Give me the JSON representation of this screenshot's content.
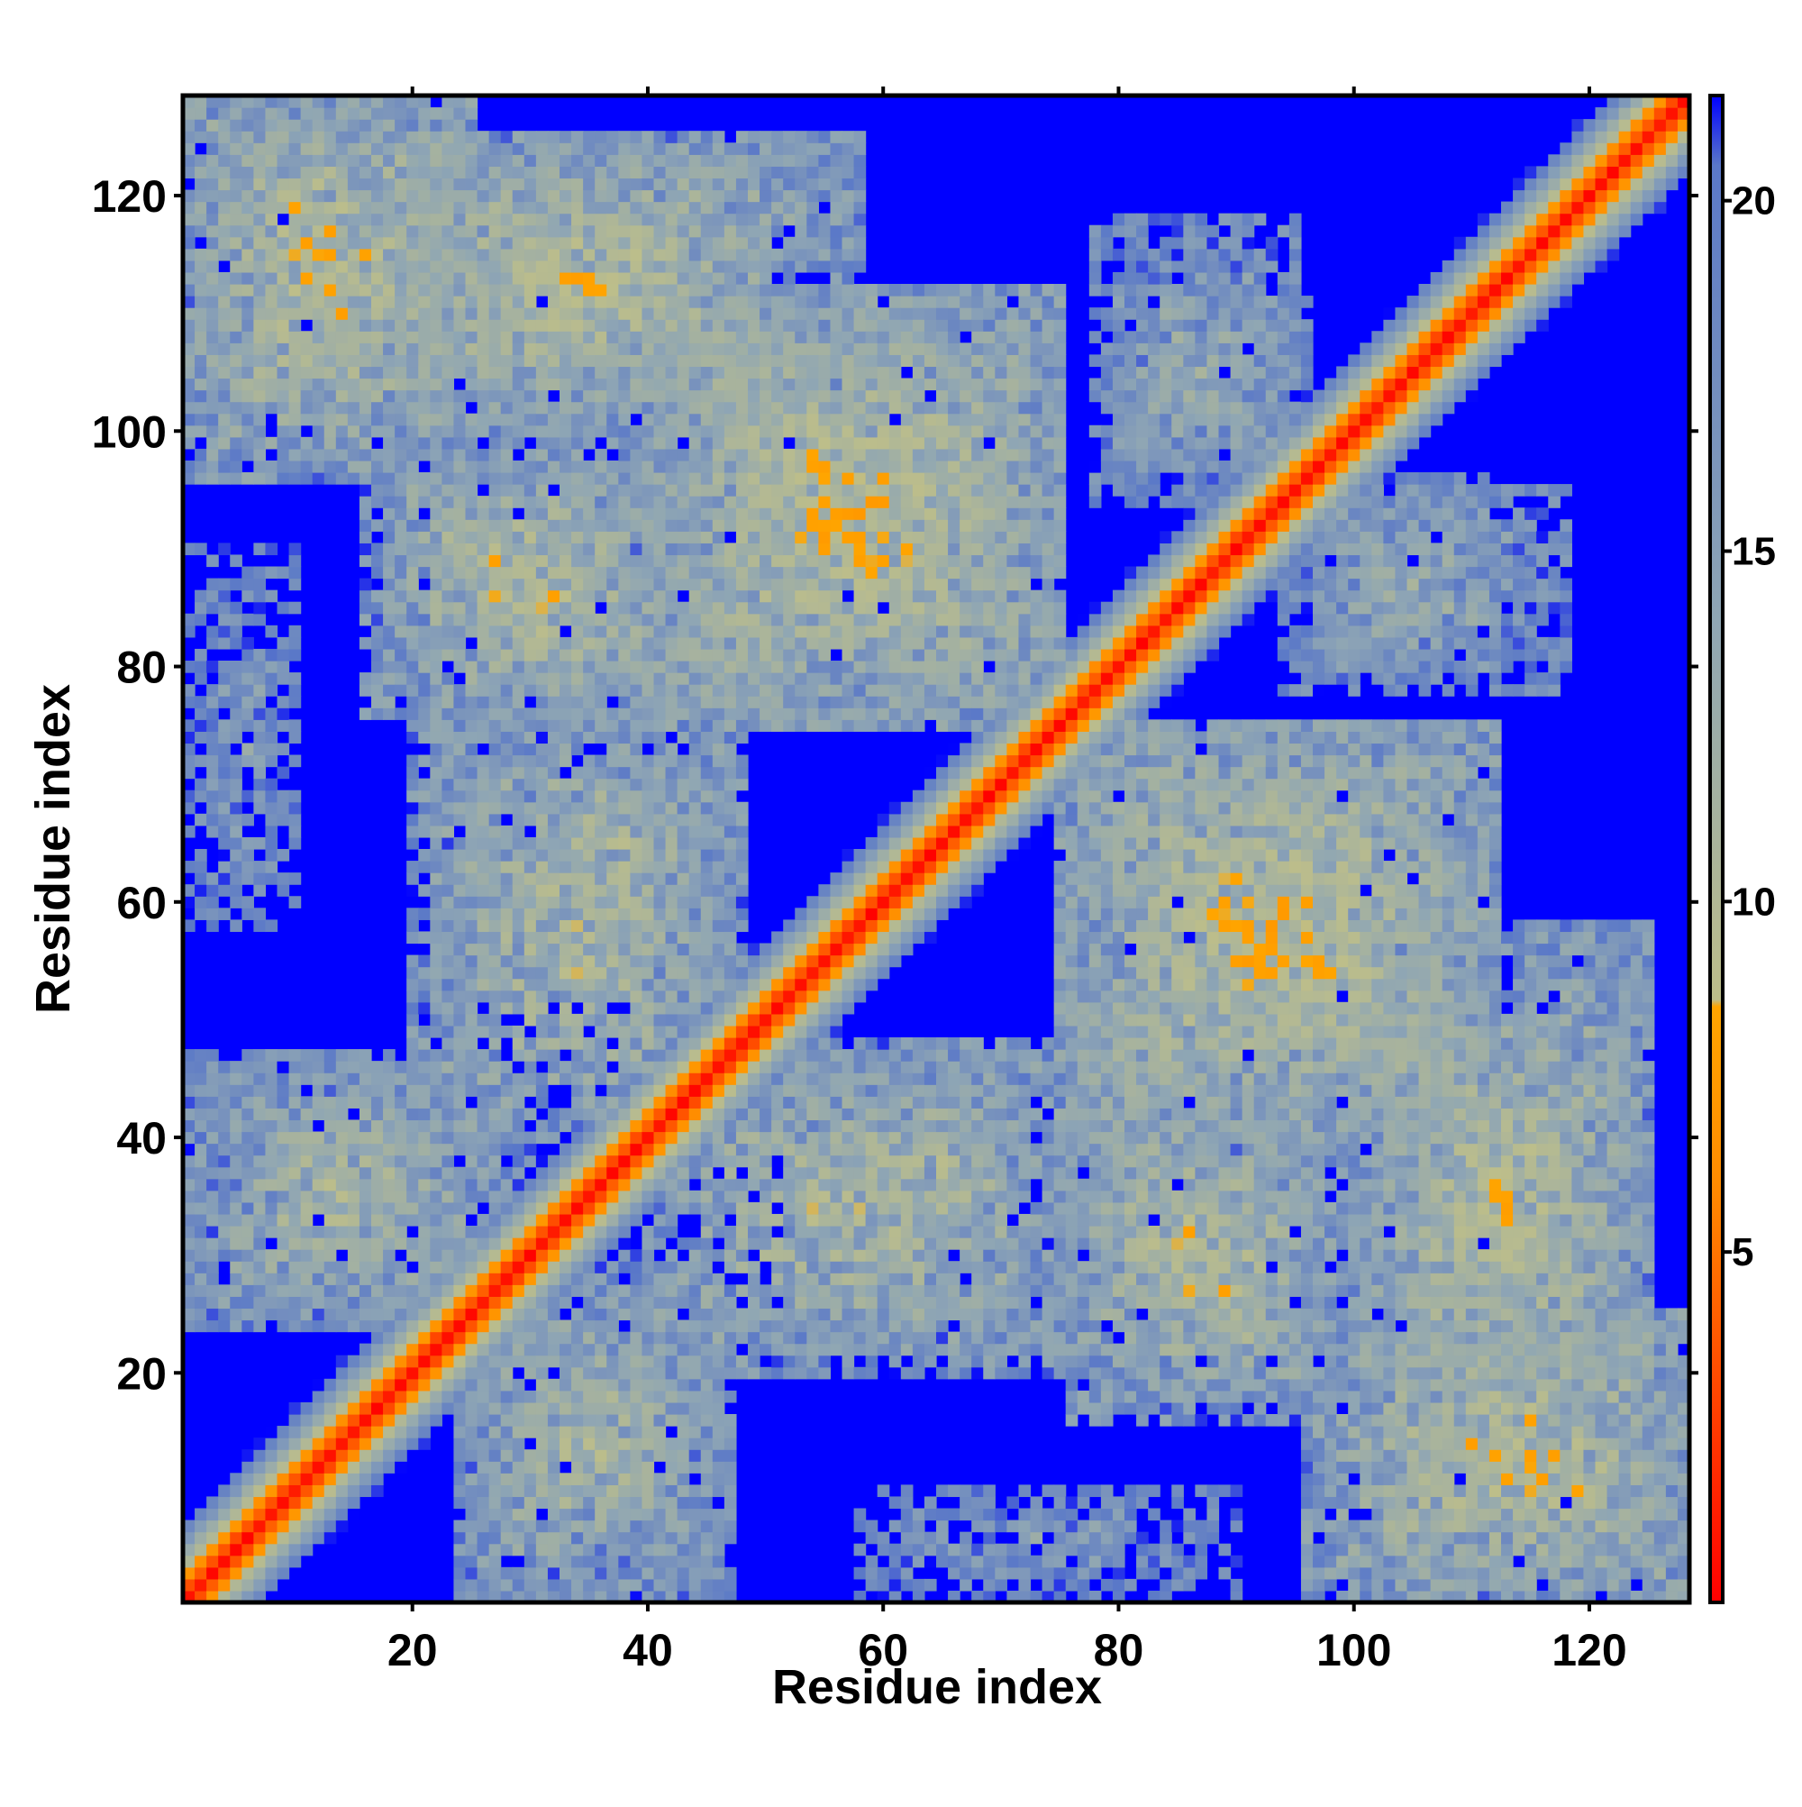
{
  "chart_data": {
    "type": "heatmap",
    "title": "",
    "xlabel": "Residue index",
    "ylabel": "Residue index",
    "n_residues": 128,
    "xlim": [
      1,
      128
    ],
    "ylim": [
      1,
      128
    ],
    "x_ticks": [
      20,
      40,
      60,
      80,
      100,
      120
    ],
    "y_ticks": [
      20,
      40,
      60,
      80,
      100,
      120
    ],
    "colorbar": {
      "range": [
        0,
        21.5
      ],
      "ticks": [
        5,
        10,
        15,
        20
      ],
      "stops": [
        {
          "value": 0,
          "color": "#ff0000"
        },
        {
          "value": 6,
          "color": "#ff8c00"
        },
        {
          "value": 8.5,
          "color": "#ffa500"
        },
        {
          "value": 8.6,
          "color": "#bdbe8a"
        },
        {
          "value": 14,
          "color": "#8fa6b4"
        },
        {
          "value": 20.5,
          "color": "#5a78c8"
        },
        {
          "value": 21.5,
          "color": "#0000ff"
        }
      ]
    },
    "cutoff": 21.5,
    "diagonal_band": {
      "distance_per_residue": 3.0
    },
    "contact_regions": [
      {
        "x": [
          1,
          25
        ],
        "y": [
          104,
          128
        ],
        "center_distance": 10.5,
        "spread": 6
      },
      {
        "x": [
          12,
          58
        ],
        "y": [
          100,
          125
        ],
        "center_distance": 11.5,
        "spread": 6
      },
      {
        "x": [
          40,
          75
        ],
        "y": [
          76,
          110
        ],
        "center_distance": 10.5,
        "spread": 6
      },
      {
        "x": [
          20,
          45
        ],
        "y": [
          74,
          97
        ],
        "center_distance": 11.5,
        "spread": 6
      },
      {
        "x": [
          22,
          48
        ],
        "y": [
          52,
          75
        ],
        "center_distance": 11.5,
        "spread": 6
      },
      {
        "x": [
          1,
          10
        ],
        "y": [
          58,
          90
        ],
        "center_distance": 15.5,
        "spread": 5
      },
      {
        "x": [
          1,
          30
        ],
        "y": [
          24,
          47
        ],
        "center_distance": 12.5,
        "spread": 6
      },
      {
        "x": [
          40,
          72
        ],
        "y": [
          20,
          47
        ],
        "center_distance": 11.5,
        "spread": 6
      },
      {
        "x": [
          76,
          100
        ],
        "y": [
          16,
          40
        ],
        "center_distance": 11.5,
        "spread": 6
      },
      {
        "x": [
          96,
          128
        ],
        "y": [
          1,
          24
        ],
        "center_distance": 11.0,
        "spread": 6
      },
      {
        "x": [
          24,
          46
        ],
        "y": [
          1,
          24
        ],
        "center_distance": 12.0,
        "spread": 6
      },
      {
        "x": [
          75,
          112
        ],
        "y": [
          40,
          75
        ],
        "center_distance": 10.5,
        "spread": 6
      },
      {
        "x": [
          100,
          125
        ],
        "y": [
          20,
          50
        ],
        "center_distance": 11.0,
        "spread": 6
      },
      {
        "x": [
          78,
          95
        ],
        "y": [
          94,
          118
        ],
        "center_distance": 14.0,
        "spread": 5
      },
      {
        "x": [
          96,
          112
        ],
        "y": [
          80,
          96
        ],
        "center_distance": 14.0,
        "spread": 5
      }
    ]
  }
}
